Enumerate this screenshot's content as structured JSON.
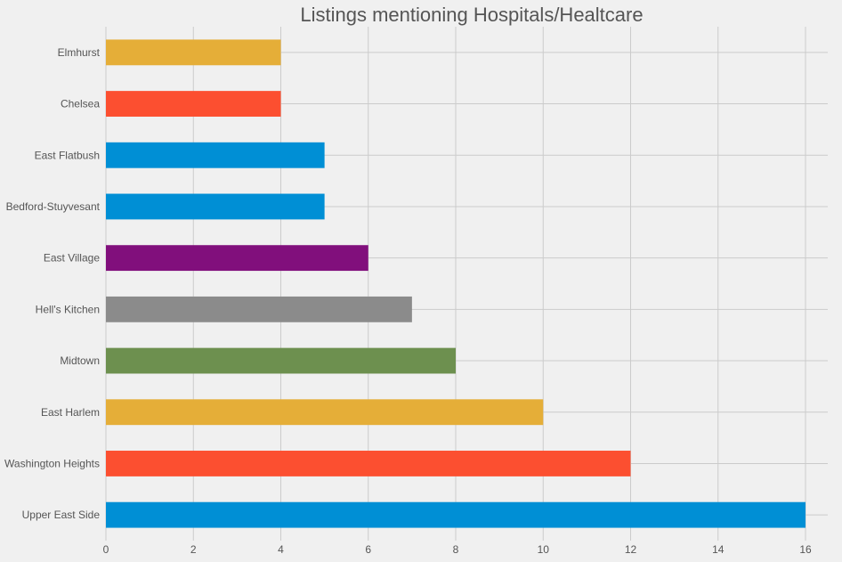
{
  "chart_data": {
    "type": "bar",
    "orientation": "horizontal",
    "title": "Listings mentioning Hospitals/Healtcare",
    "xlabel": "",
    "ylabel": "",
    "categories": [
      "Upper East Side",
      "Washington Heights",
      "East Harlem",
      "Midtown",
      "Hell's Kitchen",
      "East Village",
      "Bedford-Stuyvesant",
      "East Flatbush",
      "Chelsea",
      "Elmhurst"
    ],
    "values": [
      16,
      12,
      10,
      8,
      7,
      6,
      5,
      5,
      4,
      4
    ],
    "bar_colors": [
      "#008fd5",
      "#fc4f30",
      "#e5ae38",
      "#6d904f",
      "#8b8b8b",
      "#810f7c",
      "#008fd5",
      "#008fd5",
      "#fc4f30",
      "#e5ae38"
    ],
    "xlim": [
      0,
      16.5
    ],
    "xticks": [
      0,
      2,
      4,
      6,
      8,
      10,
      12,
      14,
      16
    ],
    "grid": true,
    "style": {
      "background": "#f0f0f0",
      "grid_color": "#cbcbcb",
      "text_color": "#555555"
    }
  }
}
